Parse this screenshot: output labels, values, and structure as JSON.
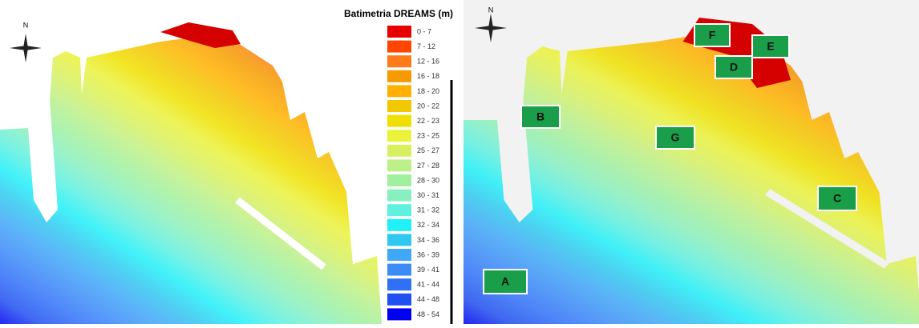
{
  "left_panel": {
    "north": "N",
    "legend": {
      "title": "Batimetria DREAMS (m)",
      "items": [
        {
          "label": "0 - 7",
          "color": "#e60000"
        },
        {
          "label": "7 - 12",
          "color": "#ff4500"
        },
        {
          "label": "12 - 16",
          "color": "#ff7a1a"
        },
        {
          "label": "16 - 18",
          "color": "#f59a00"
        },
        {
          "label": "18 - 20",
          "color": "#ffb000"
        },
        {
          "label": "20 - 22",
          "color": "#f2c800"
        },
        {
          "label": "22 - 23",
          "color": "#f0e000"
        },
        {
          "label": "23 - 25",
          "color": "#eaf23a"
        },
        {
          "label": "25 - 27",
          "color": "#d8f060"
        },
        {
          "label": "27 - 28",
          "color": "#bdf088"
        },
        {
          "label": "28 - 30",
          "color": "#a0f0a0"
        },
        {
          "label": "30 - 31",
          "color": "#88f0c0"
        },
        {
          "label": "31 - 32",
          "color": "#60f0e0"
        },
        {
          "label": "32 - 34",
          "color": "#20f0f8"
        },
        {
          "label": "34 - 36",
          "color": "#30c8f0"
        },
        {
          "label": "36 - 39",
          "color": "#40a8f8"
        },
        {
          "label": "39 - 41",
          "color": "#3c8cf8"
        },
        {
          "label": "41 - 44",
          "color": "#3070f8"
        },
        {
          "label": "44 - 48",
          "color": "#2050f0"
        },
        {
          "label": "48 - 54",
          "color": "#0000f0"
        }
      ]
    }
  },
  "right_panel": {
    "north": "N",
    "sites": [
      "F",
      "E",
      "D",
      "B",
      "G",
      "C",
      "A"
    ]
  }
}
